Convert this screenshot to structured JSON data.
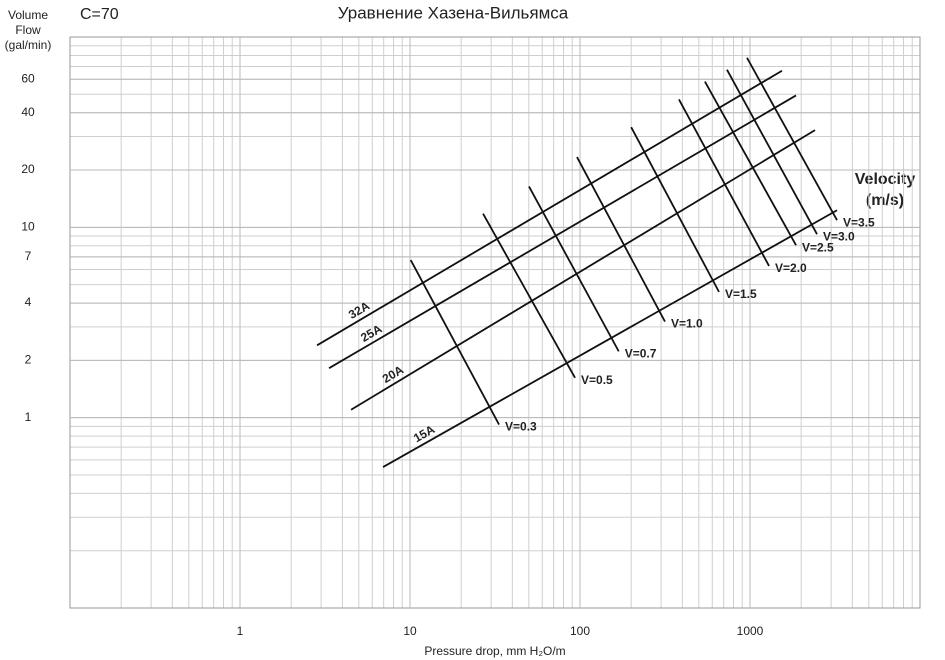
{
  "chart_data": {
    "type": "line",
    "title": "Уравнение Хазена-Вильямса",
    "subtitle": "C=70",
    "ylabel": [
      "Volume",
      "Flow",
      "(gal/min)"
    ],
    "xlabel": "Pressure drop, mm H₂O/m",
    "annotation": [
      "Velocity",
      "(m/s)"
    ],
    "log_x": true,
    "log_y": true,
    "grid": true,
    "xlim": [
      0.1,
      10000
    ],
    "ylim": [
      0.1,
      100
    ],
    "xticks": [
      1,
      10,
      100,
      1000
    ],
    "yticks": [
      1,
      2,
      4,
      7,
      10,
      20,
      40,
      60
    ],
    "color": "#111111",
    "series": [
      {
        "name": "32A",
        "x": [
          2.84,
          1542
        ],
        "y": [
          2.4,
          66.5
        ]
      },
      {
        "name": "25A",
        "x": [
          3.34,
          1865
        ],
        "y": [
          1.82,
          49.3
        ]
      },
      {
        "name": "20A",
        "x": [
          4.5,
          2412
        ],
        "y": [
          1.1,
          32.4
        ]
      },
      {
        "name": "15A",
        "x": [
          6.94,
          3250
        ],
        "y": [
          0.55,
          12.3
        ]
      },
      {
        "name": "V=0.3",
        "x": [
          10.1,
          33.4
        ],
        "y": [
          6.73,
          0.92
        ]
      },
      {
        "name": "V=0.5",
        "x": [
          26.9,
          93.5
        ],
        "y": [
          11.8,
          1.62
        ]
      },
      {
        "name": "V=0.7",
        "x": [
          50.1,
          169
        ],
        "y": [
          16.4,
          2.23
        ]
      },
      {
        "name": "V=1.0",
        "x": [
          96,
          316
        ],
        "y": [
          23.4,
          3.2
        ]
      },
      {
        "name": "V=1.5",
        "x": [
          200,
          657
        ],
        "y": [
          33.6,
          4.58
        ]
      },
      {
        "name": "V=2.0",
        "x": [
          382,
          1294
        ],
        "y": [
          47,
          6.27
        ]
      },
      {
        "name": "V=2.5",
        "x": [
          543,
          1865
        ],
        "y": [
          58.3,
          8.06
        ]
      },
      {
        "name": "V=3.0",
        "x": [
          732,
          2478
        ],
        "y": [
          67.3,
          9.2
        ]
      },
      {
        "name": "V=3.5",
        "x": [
          960,
          3250
        ],
        "y": [
          77.8,
          10.9
        ]
      }
    ]
  }
}
